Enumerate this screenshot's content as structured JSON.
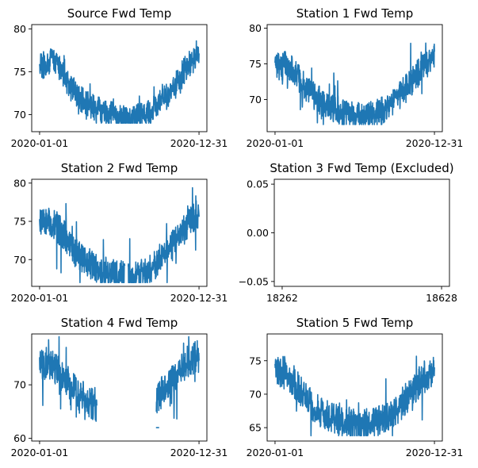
{
  "chart_data": [
    {
      "type": "line",
      "title": "Source Fwd Temp",
      "x_range": [
        "2020-01-01",
        "2020-12-31"
      ],
      "xticks": [
        "2020-01-01",
        "2020-12-31"
      ],
      "ylim": [
        68,
        80.5
      ],
      "yticks": [
        70,
        75,
        80
      ],
      "ytick_labels": [
        "70",
        "75",
        "80"
      ],
      "series": [
        {
          "gaps": [],
          "profile": [
            [
              0,
              75.5
            ],
            [
              0.04,
              76
            ],
            [
              0.08,
              76.5
            ],
            [
              0.12,
              75.5
            ],
            [
              0.18,
              73.5
            ],
            [
              0.25,
              72
            ],
            [
              0.32,
              71
            ],
            [
              0.4,
              70.3
            ],
            [
              0.48,
              69.8
            ],
            [
              0.56,
              69.6
            ],
            [
              0.62,
              69.7
            ],
            [
              0.68,
              70.2
            ],
            [
              0.74,
              71
            ],
            [
              0.8,
              72.2
            ],
            [
              0.86,
              73.5
            ],
            [
              0.92,
              75.5
            ],
            [
              1.0,
              77
            ]
          ],
          "noise": 1.6,
          "ymin": 69,
          "ymax": 80.3
        }
      ]
    },
    {
      "type": "line",
      "title": "Station 1 Fwd Temp",
      "x_range": [
        "2020-01-01",
        "2020-12-31"
      ],
      "xticks": [
        "2020-01-01",
        "2020-12-31"
      ],
      "ylim": [
        65.5,
        80.5
      ],
      "yticks": [
        70,
        75,
        80
      ],
      "ytick_labels": [
        "70",
        "75",
        "80"
      ],
      "series": [
        {
          "gaps": [],
          "profile": [
            [
              0,
              74.5
            ],
            [
              0.05,
              75
            ],
            [
              0.1,
              74.5
            ],
            [
              0.15,
              73
            ],
            [
              0.22,
              71
            ],
            [
              0.3,
              69.5
            ],
            [
              0.38,
              68.5
            ],
            [
              0.46,
              68
            ],
            [
              0.54,
              67.6
            ],
            [
              0.62,
              67.8
            ],
            [
              0.68,
              68.5
            ],
            [
              0.74,
              69.5
            ],
            [
              0.8,
              71
            ],
            [
              0.86,
              72.5
            ],
            [
              0.92,
              74.5
            ],
            [
              1.0,
              76
            ]
          ],
          "noise": 2.0,
          "ymin": 66.5,
          "ymax": 79.8
        }
      ]
    },
    {
      "type": "line",
      "title": "Station 2 Fwd Temp",
      "x_range": [
        "2020-01-01",
        "2020-12-31"
      ],
      "xticks": [
        "2020-01-01",
        "2020-12-31"
      ],
      "ylim": [
        66.5,
        80.5
      ],
      "yticks": [
        70,
        75,
        80
      ],
      "ytick_labels": [
        "70",
        "75",
        "80"
      ],
      "series": [
        {
          "gaps": [
            [
              0.535,
              0.555
            ]
          ],
          "profile": [
            [
              0,
              74.5
            ],
            [
              0.05,
              75
            ],
            [
              0.1,
              74.5
            ],
            [
              0.16,
              73
            ],
            [
              0.23,
              71
            ],
            [
              0.31,
              69.5
            ],
            [
              0.39,
              68.5
            ],
            [
              0.47,
              68
            ],
            [
              0.55,
              67.8
            ],
            [
              0.63,
              68
            ],
            [
              0.69,
              68.7
            ],
            [
              0.75,
              69.8
            ],
            [
              0.81,
              71.2
            ],
            [
              0.87,
              72.8
            ],
            [
              0.93,
              74.5
            ],
            [
              1.0,
              76
            ]
          ],
          "noise": 2.0,
          "ymin": 67,
          "ymax": 79.7
        }
      ]
    },
    {
      "type": "line",
      "title": "Station 3 Fwd Temp (Excluded)",
      "x_range": [
        18262,
        18628
      ],
      "xticks": [
        "18262",
        "18628"
      ],
      "ylim": [
        -0.055,
        0.055
      ],
      "yticks": [
        -0.05,
        0.0,
        0.05
      ],
      "ytick_labels": [
        "−0.05",
        "0.00",
        "0.05"
      ],
      "series": []
    },
    {
      "type": "line",
      "title": "Station 4 Fwd Temp",
      "x_range": [
        "2020-01-01",
        "2020-12-31"
      ],
      "xticks": [
        "2020-01-01",
        "2020-12-31"
      ],
      "ylim": [
        59.5,
        79.5
      ],
      "yticks": [
        60,
        70
      ],
      "ytick_labels": [
        "60",
        "70"
      ],
      "series": [
        {
          "gaps": [
            [
              0.36,
              0.73
            ]
          ],
          "profile": [
            [
              0,
              73.5
            ],
            [
              0.05,
              74
            ],
            [
              0.1,
              73
            ],
            [
              0.15,
              71.5
            ],
            [
              0.2,
              70
            ],
            [
              0.25,
              68.5
            ],
            [
              0.3,
              67
            ],
            [
              0.36,
              66
            ],
            [
              0.73,
              67
            ],
            [
              0.78,
              69
            ],
            [
              0.84,
              71
            ],
            [
              0.9,
              73
            ],
            [
              0.95,
              74.5
            ],
            [
              1.0,
              76
            ]
          ],
          "noise": 3.0,
          "ymin": 60,
          "ymax": 79,
          "isolated": [
            [
              0.74,
              62
            ]
          ]
        }
      ]
    },
    {
      "type": "line",
      "title": "Station 5 Fwd Temp",
      "x_range": [
        "2020-01-01",
        "2020-12-31"
      ],
      "xticks": [
        "2020-01-01",
        "2020-12-31"
      ],
      "ylim": [
        63,
        79
      ],
      "yticks": [
        65,
        70,
        75
      ],
      "ytick_labels": [
        "65",
        "70",
        "75"
      ],
      "series": [
        {
          "gaps": [],
          "profile": [
            [
              0,
              73
            ],
            [
              0.05,
              73.5
            ],
            [
              0.1,
              72.5
            ],
            [
              0.16,
              70.5
            ],
            [
              0.23,
              68.5
            ],
            [
              0.31,
              67
            ],
            [
              0.39,
              66.2
            ],
            [
              0.47,
              65.7
            ],
            [
              0.55,
              65.4
            ],
            [
              0.63,
              65.6
            ],
            [
              0.69,
              66.4
            ],
            [
              0.75,
              67.5
            ],
            [
              0.81,
              69
            ],
            [
              0.87,
              70.8
            ],
            [
              0.93,
              72.5
            ],
            [
              1.0,
              73.5
            ]
          ],
          "noise": 2.4,
          "ymin": 63.8,
          "ymax": 78.2
        }
      ]
    }
  ]
}
